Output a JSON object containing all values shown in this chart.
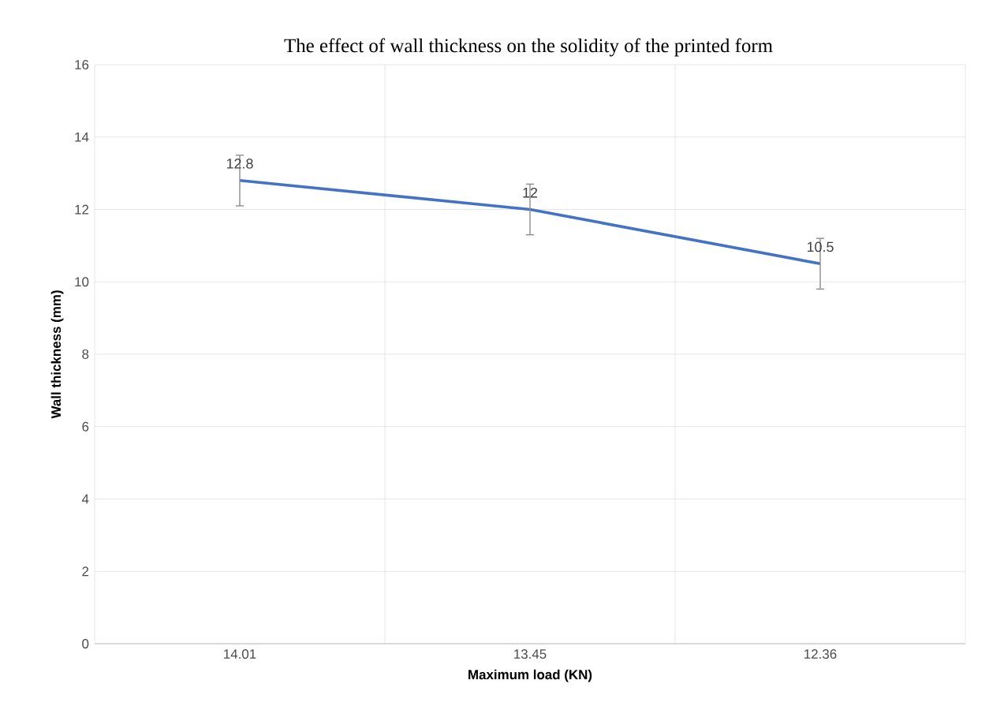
{
  "chart_data": {
    "type": "line",
    "title": "The effect of wall thickness on the solidity of the printed form",
    "xlabel": "Maximum load (KN)",
    "ylabel": "Wall thickness (mm)",
    "categories": [
      "14.01",
      "13.45",
      "12.36"
    ],
    "series": [
      {
        "color": "#4472c4",
        "values": [
          12.8,
          12,
          10.5
        ],
        "errors": [
          0.7,
          0.7,
          0.7
        ]
      }
    ],
    "ylim": [
      0,
      16
    ],
    "yticks": [
      0,
      2,
      4,
      6,
      8,
      10,
      12,
      14,
      16
    ],
    "grid": true,
    "data_labels": true,
    "marker": "none",
    "line_style": "solid"
  }
}
